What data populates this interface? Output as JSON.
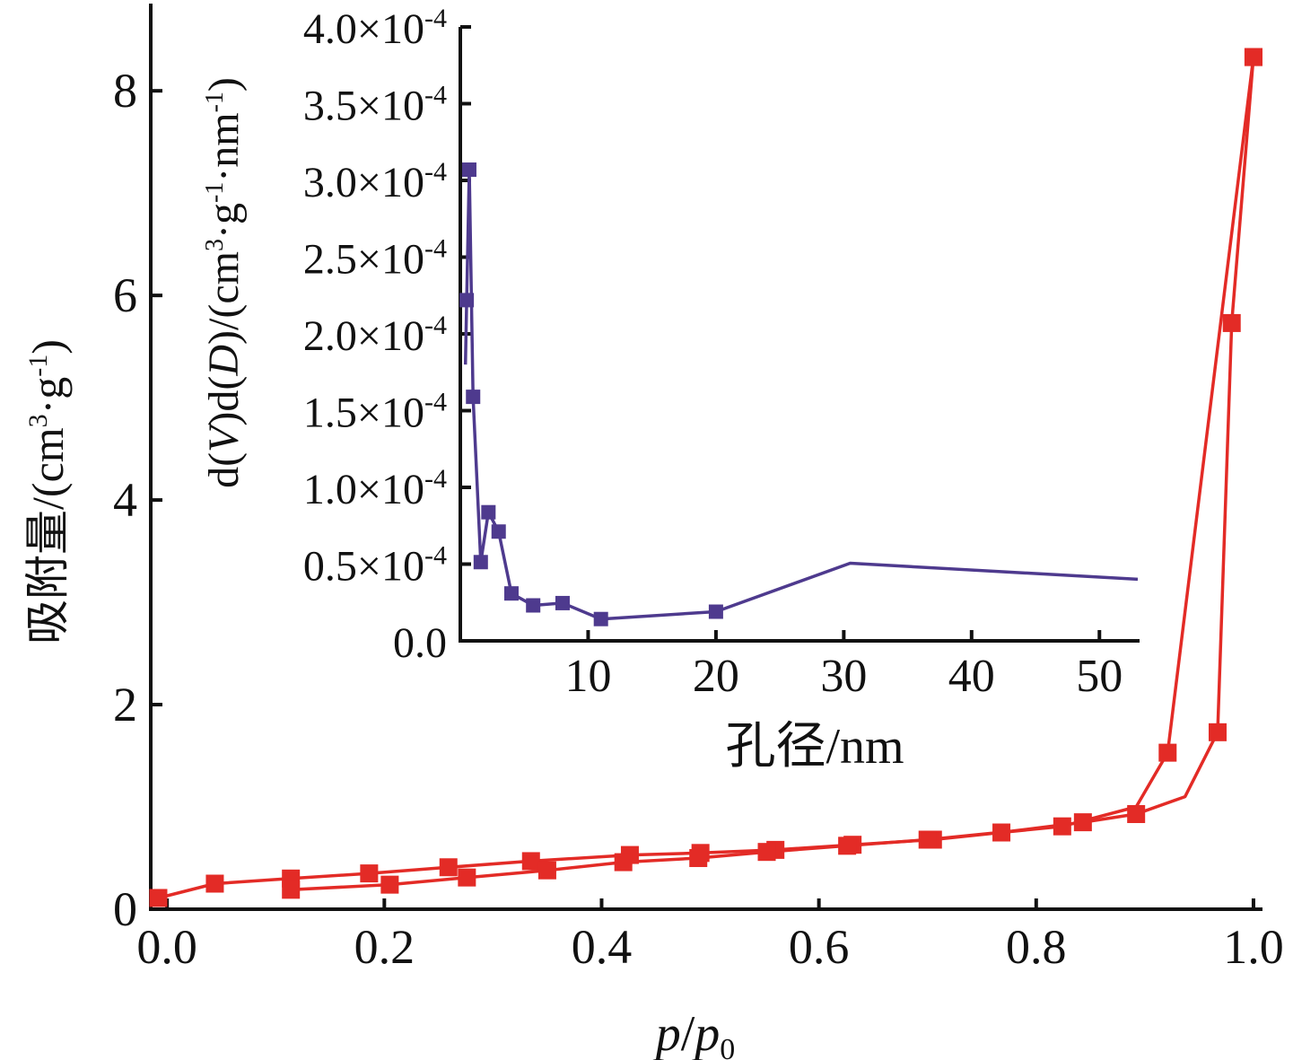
{
  "colors": {
    "main_series": "#e32b26",
    "inset_series": "#4e3a8e",
    "axis": "#111111"
  },
  "chart_data": [
    {
      "type": "line",
      "xlabel": "p/p0",
      "xlabel_parts": {
        "p": "p",
        "slash": "/",
        "p2": "p",
        "sub": "0"
      },
      "ylabel": "吸附量/(cm3·g-1)",
      "ylabel_parts": {
        "a": "吸附量/(cm",
        "sup1": "3",
        "b": "·g",
        "sup2": "-1",
        "c": ")"
      },
      "xlim": [
        -0.015,
        1.005
      ],
      "ylim": [
        0,
        8.8
      ],
      "x_ticks": [
        0.0,
        0.2,
        0.4,
        0.6,
        0.8,
        1.0
      ],
      "x_tick_labels": [
        "0.0",
        "0.2",
        "0.4",
        "0.6",
        "0.8",
        "1.0"
      ],
      "y_ticks": [
        0,
        2,
        4,
        6,
        8
      ],
      "y_tick_labels": [
        "0",
        "2",
        "4",
        "6",
        "8"
      ],
      "grid": false,
      "series": [
        {
          "x": [
            -0.008,
            0.044,
            0.114,
            0.186,
            0.259,
            0.335,
            0.426,
            0.491,
            0.56,
            0.631,
            0.705,
            0.768,
            0.824,
            0.892,
            0.921,
            1.0
          ],
          "y": [
            0.11,
            0.25,
            0.3,
            0.35,
            0.41,
            0.47,
            0.53,
            0.55,
            0.58,
            0.63,
            0.68,
            0.75,
            0.81,
            1.0,
            1.53,
            8.33
          ],
          "markers": [
            true,
            true,
            true,
            true,
            true,
            true,
            true,
            true,
            true,
            true,
            true,
            true,
            true,
            false,
            true,
            true
          ]
        },
        {
          "x": [
            1.0,
            0.98,
            0.967,
            0.937,
            0.892,
            0.843,
            0.775,
            0.7,
            0.626,
            0.552,
            0.489,
            0.42,
            0.35,
            0.276,
            0.205,
            0.114
          ],
          "y": [
            8.33,
            5.73,
            1.73,
            1.1,
            0.93,
            0.85,
            0.76,
            0.68,
            0.62,
            0.56,
            0.5,
            0.46,
            0.38,
            0.31,
            0.24,
            0.19
          ],
          "markers": [
            true,
            true,
            true,
            false,
            true,
            true,
            false,
            true,
            true,
            true,
            true,
            true,
            true,
            true,
            true,
            true
          ]
        }
      ]
    },
    {
      "type": "line",
      "xlabel": "孔径/nm",
      "ylabel": "d(V)d(D)/(cm3·g-1·nm-1)",
      "ylabel_parts": {
        "a": "d(",
        "v": "V",
        "b": ")d(",
        "d": "D",
        "c": ")/(cm",
        "sup1": "3",
        "e": "·g",
        "sup2": "-1",
        "f": "·nm",
        "sup3": "-1",
        "g": ")"
      },
      "xlim": [
        0,
        53
      ],
      "ylim": [
        0,
        0.0004
      ],
      "x_ticks": [
        10,
        20,
        30,
        40,
        50
      ],
      "x_tick_labels": [
        "10",
        "20",
        "30",
        "40",
        "50"
      ],
      "y_ticks": [
        0,
        5e-05,
        0.0001,
        0.00015,
        0.0002,
        0.00025,
        0.0003,
        0.00035,
        0.0004
      ],
      "y_tick_labels": [
        {
          "mant": "0.0",
          "exp": ""
        },
        {
          "mant": "0.5×10",
          "exp": "-4"
        },
        {
          "mant": "1.0×10",
          "exp": "-4"
        },
        {
          "mant": "1.5×10",
          "exp": "-4"
        },
        {
          "mant": "2.0×10",
          "exp": "-4"
        },
        {
          "mant": "2.5×10",
          "exp": "-4"
        },
        {
          "mant": "3.0×10",
          "exp": "-4"
        },
        {
          "mant": "3.5×10",
          "exp": "-4"
        },
        {
          "mant": "4.0×10",
          "exp": "-4"
        }
      ],
      "grid": false,
      "series": [
        {
          "x": [
            0.4,
            0.5,
            0.7,
            1.0,
            1.6,
            2.2,
            3.0,
            4.0,
            5.7,
            8.0,
            11.0,
            20.0,
            30.5,
            53.0
          ],
          "y": [
            0.00018,
            0.000222,
            0.000307,
            0.000159,
            5.13e-05,
            8.38e-05,
            7.12e-05,
            3.09e-05,
            2.31e-05,
            2.46e-05,
            1.42e-05,
            1.9e-05,
            5.06e-05,
            4.01e-05
          ],
          "markers": [
            false,
            true,
            true,
            true,
            true,
            true,
            true,
            true,
            true,
            true,
            true,
            true,
            false,
            false
          ]
        }
      ]
    }
  ]
}
